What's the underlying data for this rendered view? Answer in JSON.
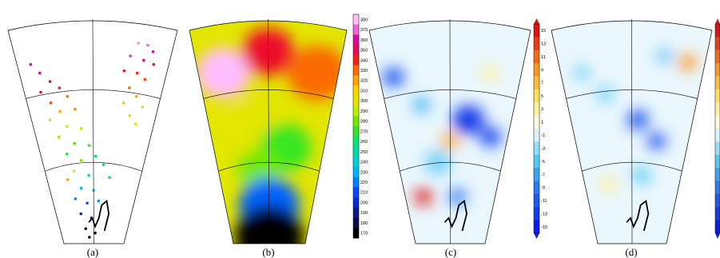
{
  "panels": [
    {
      "label": "(a)"
    },
    {
      "label": "(b)"
    },
    {
      "label": "(c)"
    },
    {
      "label": "(d)"
    }
  ],
  "chart_data": [
    {
      "type": "scatter",
      "panel": "(a)",
      "description_printed": "",
      "grid": true,
      "colormap": "rainbow 170-380",
      "points": [
        {
          "x": 0.78,
          "y": 0.06,
          "value": 375
        },
        {
          "x": 0.84,
          "y": 0.07,
          "value": 370
        },
        {
          "x": 0.88,
          "y": 0.1,
          "value": 360
        },
        {
          "x": 0.74,
          "y": 0.12,
          "value": 365
        },
        {
          "x": 0.83,
          "y": 0.14,
          "value": 355
        },
        {
          "x": 0.9,
          "y": 0.16,
          "value": 350
        },
        {
          "x": 0.71,
          "y": 0.19,
          "value": 345
        },
        {
          "x": 0.8,
          "y": 0.2,
          "value": 340
        },
        {
          "x": 0.86,
          "y": 0.23,
          "value": 335
        },
        {
          "x": 0.76,
          "y": 0.27,
          "value": 330
        },
        {
          "x": 0.82,
          "y": 0.31,
          "value": 320
        },
        {
          "x": 0.73,
          "y": 0.34,
          "value": 315
        },
        {
          "x": 0.88,
          "y": 0.36,
          "value": 310
        },
        {
          "x": 0.79,
          "y": 0.4,
          "value": 300
        },
        {
          "x": 0.85,
          "y": 0.44,
          "value": 295
        },
        {
          "x": 0.09,
          "y": 0.16,
          "value": 360
        },
        {
          "x": 0.14,
          "y": 0.2,
          "value": 355
        },
        {
          "x": 0.2,
          "y": 0.24,
          "value": 350
        },
        {
          "x": 0.26,
          "y": 0.27,
          "value": 340
        },
        {
          "x": 0.12,
          "y": 0.29,
          "value": 345
        },
        {
          "x": 0.31,
          "y": 0.31,
          "value": 330
        },
        {
          "x": 0.18,
          "y": 0.34,
          "value": 335
        },
        {
          "x": 0.24,
          "y": 0.38,
          "value": 320
        },
        {
          "x": 0.36,
          "y": 0.37,
          "value": 325
        },
        {
          "x": 0.15,
          "y": 0.42,
          "value": 310
        },
        {
          "x": 0.28,
          "y": 0.45,
          "value": 300
        },
        {
          "x": 0.4,
          "y": 0.46,
          "value": 290
        },
        {
          "x": 0.2,
          "y": 0.5,
          "value": 285
        },
        {
          "x": 0.33,
          "y": 0.53,
          "value": 275
        },
        {
          "x": 0.46,
          "y": 0.54,
          "value": 270
        },
        {
          "x": 0.25,
          "y": 0.58,
          "value": 265
        },
        {
          "x": 0.52,
          "y": 0.59,
          "value": 260
        },
        {
          "x": 0.38,
          "y": 0.61,
          "value": 280
        },
        {
          "x": 0.6,
          "y": 0.63,
          "value": 255
        },
        {
          "x": 0.3,
          "y": 0.66,
          "value": 300
        },
        {
          "x": 0.45,
          "y": 0.68,
          "value": 250
        },
        {
          "x": 0.22,
          "y": 0.7,
          "value": 320
        },
        {
          "x": 0.67,
          "y": 0.69,
          "value": 260
        },
        {
          "x": 0.36,
          "y": 0.74,
          "value": 230
        },
        {
          "x": 0.5,
          "y": 0.75,
          "value": 240
        },
        {
          "x": 0.28,
          "y": 0.79,
          "value": 220
        },
        {
          "x": 0.42,
          "y": 0.81,
          "value": 210
        },
        {
          "x": 0.56,
          "y": 0.8,
          "value": 225
        },
        {
          "x": 0.33,
          "y": 0.86,
          "value": 195
        },
        {
          "x": 0.47,
          "y": 0.88,
          "value": 185
        },
        {
          "x": 0.38,
          "y": 0.93,
          "value": 175
        },
        {
          "x": 0.52,
          "y": 0.95,
          "value": 172
        },
        {
          "x": 0.43,
          "y": 0.97,
          "value": 171
        }
      ]
    },
    {
      "type": "heatmap",
      "panel": "(b)",
      "grid": true,
      "colorbar_ticks": [
        "380",
        "370",
        "360",
        "350",
        "340",
        "330",
        "320",
        "310",
        "300",
        "290",
        "280",
        "270",
        "260",
        "250",
        "240",
        "230",
        "220",
        "210",
        "200",
        "190",
        "180",
        "170"
      ],
      "colorbar_range": [
        170,
        380
      ],
      "blobs": [
        {
          "x": 0.18,
          "y": 0.2,
          "r": 0.32,
          "value": 380
        },
        {
          "x": 0.85,
          "y": 0.2,
          "r": 0.35,
          "value": 330
        },
        {
          "x": 0.5,
          "y": 0.1,
          "r": 0.3,
          "value": 345
        },
        {
          "x": 0.35,
          "y": 0.45,
          "r": 0.3,
          "value": 300
        },
        {
          "x": 0.65,
          "y": 0.55,
          "r": 0.3,
          "value": 270
        },
        {
          "x": 0.4,
          "y": 0.65,
          "r": 0.25,
          "value": 280
        },
        {
          "x": 0.5,
          "y": 0.82,
          "r": 0.35,
          "value": 215
        },
        {
          "x": 0.5,
          "y": 0.97,
          "r": 0.4,
          "value": 170
        }
      ]
    },
    {
      "type": "heatmap",
      "panel": "(c)",
      "grid": true,
      "colorbar_ticks": [
        "15",
        "13",
        "11",
        "9",
        "7",
        "5",
        "3",
        "1",
        "-1",
        "-3",
        "-5",
        "-7",
        "-9",
        "-11",
        "-13",
        "-15"
      ],
      "colorbar_range": [
        -15,
        15
      ],
      "blobs": [
        {
          "x": 0.1,
          "y": 0.22,
          "r": 0.12,
          "value": -11
        },
        {
          "x": 0.78,
          "y": 0.2,
          "r": 0.1,
          "value": 3
        },
        {
          "x": 0.65,
          "y": 0.42,
          "r": 0.18,
          "value": -13
        },
        {
          "x": 0.85,
          "y": 0.5,
          "r": 0.12,
          "value": -12
        },
        {
          "x": 0.5,
          "y": 0.52,
          "r": 0.1,
          "value": 8
        },
        {
          "x": 0.28,
          "y": 0.35,
          "r": 0.1,
          "value": -6
        },
        {
          "x": 0.2,
          "y": 0.78,
          "r": 0.1,
          "value": 15
        },
        {
          "x": 0.58,
          "y": 0.78,
          "r": 0.1,
          "value": -9
        },
        {
          "x": 0.38,
          "y": 0.62,
          "r": 0.15,
          "value": -4
        }
      ]
    },
    {
      "type": "heatmap",
      "panel": "(d)",
      "grid": true,
      "colorbar_ticks": [
        "15",
        "13",
        "11",
        "9",
        "7",
        "5",
        "3",
        "1",
        "-1",
        "-3",
        "-5",
        "-7",
        "-9",
        "-11",
        "-13",
        "-15"
      ],
      "colorbar_range": [
        -15,
        15
      ],
      "blobs": [
        {
          "x": 0.88,
          "y": 0.15,
          "r": 0.1,
          "value": 9
        },
        {
          "x": 0.72,
          "y": 0.12,
          "r": 0.08,
          "value": -6
        },
        {
          "x": 0.55,
          "y": 0.42,
          "r": 0.12,
          "value": -11
        },
        {
          "x": 0.72,
          "y": 0.52,
          "r": 0.1,
          "value": -12
        },
        {
          "x": 0.3,
          "y": 0.3,
          "r": 0.1,
          "value": -4
        },
        {
          "x": 0.25,
          "y": 0.72,
          "r": 0.1,
          "value": 3
        },
        {
          "x": 0.6,
          "y": 0.68,
          "r": 0.1,
          "value": -5
        },
        {
          "x": 0.15,
          "y": 0.2,
          "r": 0.08,
          "value": -5
        }
      ]
    }
  ]
}
